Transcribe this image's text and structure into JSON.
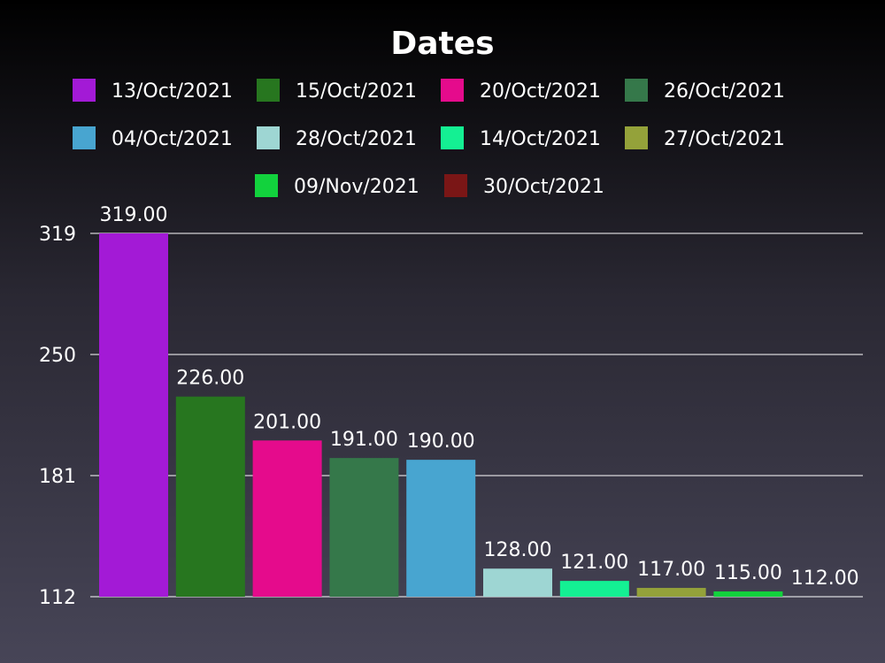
{
  "chart_data": {
    "type": "bar",
    "title": "Dates",
    "categories": [
      "13/Oct/2021",
      "15/Oct/2021",
      "20/Oct/2021",
      "26/Oct/2021",
      "04/Oct/2021",
      "28/Oct/2021",
      "14/Oct/2021",
      "27/Oct/2021",
      "09/Nov/2021",
      "30/Oct/2021"
    ],
    "values": [
      319,
      226,
      201,
      191,
      190,
      128,
      121,
      117,
      115,
      112
    ],
    "value_labels": [
      "319.00",
      "226.00",
      "201.00",
      "191.00",
      "190.00",
      "128.00",
      "121.00",
      "117.00",
      "115.00",
      "112.00"
    ],
    "colors": [
      "#a31ad6",
      "#27761f",
      "#e50b8c",
      "#35784a",
      "#48a5d0",
      "#9ed6d3",
      "#14f093",
      "#94a23a",
      "#12d23d",
      "#7a1616"
    ],
    "yticks": [
      112,
      181,
      250,
      319
    ],
    "ylim": [
      112,
      319
    ],
    "grid": true,
    "legend_position": "top-center",
    "xlabel": "",
    "ylabel": ""
  }
}
